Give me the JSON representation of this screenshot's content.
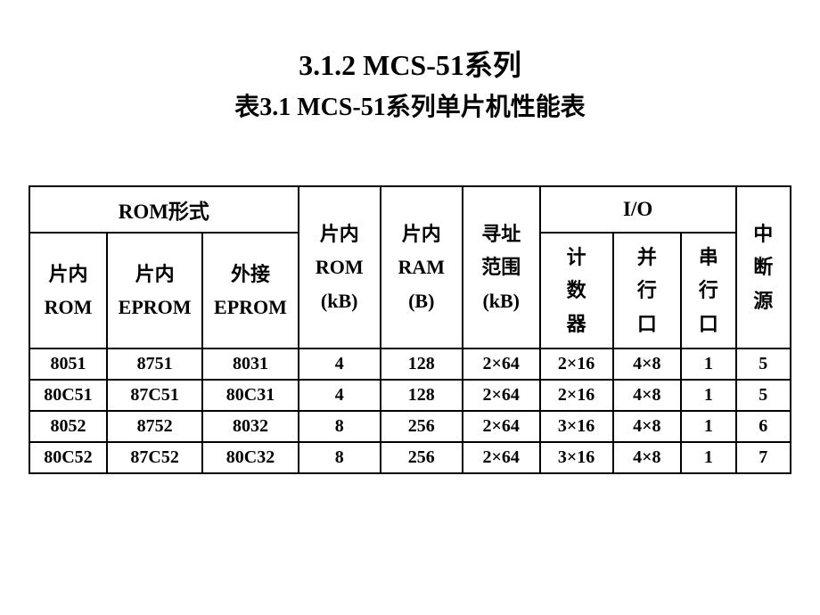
{
  "title": {
    "main": "3.1.2   MCS-51系列",
    "sub": "表3.1  MCS-51系列单片机性能表"
  },
  "table": {
    "headers": {
      "rom_form": "ROM形式",
      "io": "I/O",
      "rom_internal": "片内\nROM",
      "eprom_internal": "片内\nEPROM",
      "eprom_external": "外接\nEPROM",
      "rom_kb": "片内\nROM\n(kB)",
      "ram_b": "片内\nRAM\n(B)",
      "addr_range": "寻址\n范围\n(kB)",
      "timer": "计\n数\n器",
      "parallel": "并\n行\n口",
      "serial": "串\n行\n口",
      "interrupt": "中\n断\n源"
    },
    "rows": [
      [
        "8051",
        "8751",
        "8031",
        "4",
        "128",
        "2×64",
        "2×16",
        "4×8",
        "1",
        "5"
      ],
      [
        "80C51",
        "87C51",
        "80C31",
        "4",
        "128",
        "2×64",
        "2×16",
        "4×8",
        "1",
        "5"
      ],
      [
        "8052",
        "8752",
        "8032",
        "8",
        "256",
        "2×64",
        "3×16",
        "4×8",
        "1",
        "6"
      ],
      [
        "80C52",
        "87C52",
        "80C32",
        "8",
        "256",
        "2×64",
        "3×16",
        "4×8",
        "1",
        "7"
      ]
    ]
  },
  "style": {
    "background_color": "#ffffff",
    "text_color": "#000000",
    "border_color": "#000000",
    "title_fontsize": 32,
    "subtitle_fontsize": 28,
    "header_fontsize": 22,
    "data_fontsize": 20,
    "border_width": 2
  }
}
